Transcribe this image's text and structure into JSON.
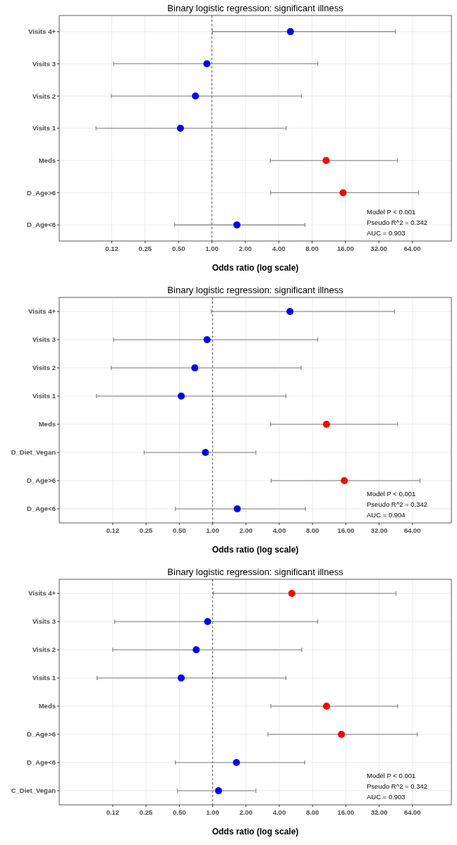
{
  "chart_data": [
    {
      "type": "scatter",
      "orientation": "horizontal",
      "title": "Binary logistic regression: significant illness",
      "xlabel": "Odds ratio (log scale)",
      "log": "x",
      "grid": true,
      "marker": "circle",
      "categories": [
        "Visits 4+",
        "Visits 3",
        "Visits 2",
        "Visits 1",
        "Meds",
        "D_Age>6",
        "D_Age<6"
      ],
      "values": [
        5.1,
        0.9,
        0.71,
        0.52,
        10.7,
        15.2,
        1.68
      ],
      "errors": [
        [
          1.01,
          45
        ],
        [
          0.13,
          9.0
        ],
        [
          0.124,
          6.4
        ],
        [
          0.09,
          4.65
        ],
        [
          3.36,
          47
        ],
        [
          3.38,
          73
        ],
        [
          0.46,
          6.9
        ]
      ],
      "colors": [
        "#0000ff",
        "#0000ff",
        "#0000ff",
        "#0000ff",
        "#ff0000",
        "#ff0000",
        "#0000ff"
      ],
      "xlim": [
        0.042,
        144
      ],
      "xticks": [
        {
          "value": 0.125,
          "label": "0.12"
        },
        {
          "value": 0.25,
          "label": "0.25"
        },
        {
          "value": 0.5,
          "label": "0.50"
        },
        {
          "value": 1,
          "label": "1.00"
        },
        {
          "value": 2,
          "label": "2.00"
        },
        {
          "value": 4,
          "label": "4.00"
        },
        {
          "value": 8,
          "label": "8.00"
        },
        {
          "value": 16,
          "label": "16.00"
        },
        {
          "value": 32,
          "label": "32.00"
        },
        {
          "value": 64,
          "label": "64.00"
        }
      ],
      "ref_lines": [
        {
          "axis": "x",
          "value": 1,
          "line_style": "dashed"
        }
      ],
      "annotations": [
        "Model P < 0.001",
        "Pseudo  R^2 = 0.342",
        "AUC = 0.903"
      ]
    },
    {
      "type": "scatter",
      "orientation": "horizontal",
      "title": "Binary logistic regression: significant illness",
      "xlabel": "Odds ratio (log scale)",
      "log": "x",
      "grid": true,
      "marker": "circle",
      "categories": [
        "Visits 4+",
        "Visits 3",
        "Visits 2",
        "Visits 1",
        "Meds",
        "D_Diet_Vegan",
        "D_Age>6",
        "D_Age<6"
      ],
      "values": [
        5.0,
        0.89,
        0.69,
        0.52,
        10.7,
        0.86,
        15.5,
        1.67
      ],
      "errors": [
        [
          0.97,
          44
        ],
        [
          0.127,
          8.9
        ],
        [
          0.121,
          6.3
        ],
        [
          0.089,
          4.6
        ],
        [
          3.34,
          47
        ],
        [
          0.24,
          2.46
        ],
        [
          3.38,
          75
        ],
        [
          0.46,
          6.9
        ]
      ],
      "colors": [
        "#0000ff",
        "#0000ff",
        "#0000ff",
        "#0000ff",
        "#ff0000",
        "#0000ff",
        "#ff0000",
        "#0000ff"
      ],
      "xlim": [
        0.041,
        144
      ],
      "xticks": [
        {
          "value": 0.125,
          "label": "0.12"
        },
        {
          "value": 0.25,
          "label": "0.25"
        },
        {
          "value": 0.5,
          "label": "0.50"
        },
        {
          "value": 1,
          "label": "1.00"
        },
        {
          "value": 2,
          "label": "2.00"
        },
        {
          "value": 4,
          "label": "4.00"
        },
        {
          "value": 8,
          "label": "8.00"
        },
        {
          "value": 16,
          "label": "16.00"
        },
        {
          "value": 32,
          "label": "32.00"
        },
        {
          "value": 64,
          "label": "64.00"
        }
      ],
      "ref_lines": [
        {
          "axis": "x",
          "value": 1,
          "line_style": "dashed"
        }
      ],
      "annotations": [
        "Model P < 0.001",
        "Pseudo  R^2 = 0.342",
        "AUC = 0.904"
      ]
    },
    {
      "type": "scatter",
      "orientation": "horizontal",
      "title": "Binary logistic regression: significant illness",
      "xlabel": "Odds ratio (log scale)",
      "log": "x",
      "grid": true,
      "marker": "circle",
      "categories": [
        "Visits 4+",
        "Visits 3",
        "Visits 2",
        "Visits 1",
        "Meds",
        "D_Age>6",
        "D_Age<6",
        "C_Diet_Vegan"
      ],
      "values": [
        5.2,
        0.9,
        0.71,
        0.52,
        10.7,
        14.6,
        1.64,
        1.13
      ],
      "errors": [
        [
          1.02,
          45.5
        ],
        [
          0.13,
          8.9
        ],
        [
          0.125,
          6.4
        ],
        [
          0.09,
          4.6
        ],
        [
          3.36,
          47
        ],
        [
          3.16,
          71
        ],
        [
          0.46,
          6.8
        ],
        [
          0.48,
          2.46
        ]
      ],
      "colors": [
        "#ff0000",
        "#0000ff",
        "#0000ff",
        "#0000ff",
        "#ff0000",
        "#ff0000",
        "#0000ff",
        "#0000ff"
      ],
      "xlim": [
        0.041,
        144
      ],
      "xticks": [
        {
          "value": 0.125,
          "label": "0.12"
        },
        {
          "value": 0.25,
          "label": "0.25"
        },
        {
          "value": 0.5,
          "label": "0.50"
        },
        {
          "value": 1,
          "label": "1.00"
        },
        {
          "value": 2,
          "label": "2.00"
        },
        {
          "value": 4,
          "label": "4.00"
        },
        {
          "value": 8,
          "label": "8.00"
        },
        {
          "value": 16,
          "label": "16.00"
        },
        {
          "value": 32,
          "label": "32.00"
        },
        {
          "value": 64,
          "label": "64.00"
        }
      ],
      "ref_lines": [
        {
          "axis": "x",
          "value": 1,
          "line_style": "dashed"
        }
      ],
      "annotations": [
        "Model P < 0.001",
        "Pseudo  R^2 = 0.342",
        "AUC = 0.903"
      ]
    }
  ]
}
